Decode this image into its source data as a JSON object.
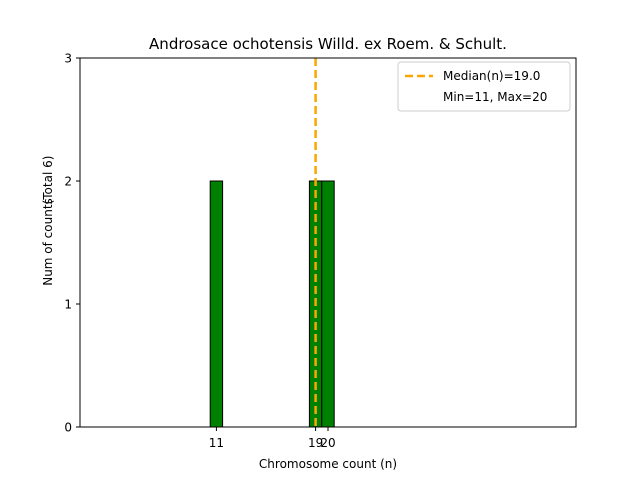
{
  "chart_data": {
    "type": "bar",
    "title": "Androsace ochotensis Willd. ex Roem. & Schult.",
    "xlabel": "Chromosome count (n)",
    "ylabel": "Num of counts",
    "ylabel_extra": "(Total 6)",
    "xlim": [
      0,
      40
    ],
    "ylim": [
      0,
      3
    ],
    "x_ticks": [
      11,
      19,
      20
    ],
    "y_ticks": [
      0,
      1,
      2,
      3
    ],
    "bars": [
      {
        "x": 11,
        "value": 2
      },
      {
        "x": 19,
        "value": 2
      },
      {
        "x": 20,
        "value": 2
      }
    ],
    "bar_color": "#008000",
    "median": 19.0,
    "median_color": "#FFA500",
    "legend": {
      "placement": "upper right",
      "entries": [
        "Median(n)=19.0",
        "Min=11, Max=20"
      ]
    },
    "grid": false
  }
}
